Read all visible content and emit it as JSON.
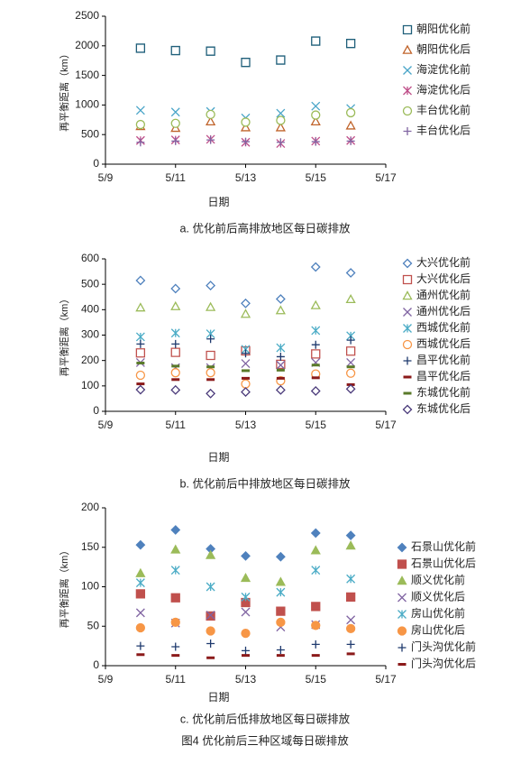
{
  "figure_caption": "图4 优化前后三种区域每日碳排放",
  "chart_data": [
    {
      "type": "scatter",
      "caption": "a.  优化前后高排放地区每日碳排放",
      "x_label": "日期",
      "y_label": "再平衡距离（km）",
      "x": [
        10,
        11,
        12,
        13,
        14,
        15,
        16
      ],
      "xlim": [
        9,
        17
      ],
      "xticks": [
        {
          "value": 9,
          "label": "5/9"
        },
        {
          "value": 11,
          "label": "5/11"
        },
        {
          "value": 13,
          "label": "5/13"
        },
        {
          "value": 15,
          "label": "5/15"
        },
        {
          "value": 17,
          "label": "5/17"
        }
      ],
      "ylim": [
        0,
        2500
      ],
      "yticks": [
        0,
        500,
        1000,
        1500,
        2000,
        2500
      ],
      "grid": false,
      "series": [
        {
          "name": "朝阳优化前",
          "color": "#1f5f7a",
          "marker": "square",
          "values": [
            1960,
            1920,
            1910,
            1720,
            1760,
            2080,
            2040
          ]
        },
        {
          "name": "朝阳优化后",
          "color": "#c0632a",
          "marker": "triangle",
          "values": [
            640,
            610,
            720,
            620,
            620,
            720,
            650
          ]
        },
        {
          "name": "海淀优化前",
          "color": "#4aa5c8",
          "marker": "x",
          "values": [
            910,
            880,
            890,
            780,
            860,
            980,
            940
          ]
        },
        {
          "name": "海淀优化后",
          "color": "#c0508a",
          "marker": "asterisk",
          "values": [
            400,
            410,
            420,
            370,
            350,
            390,
            400
          ]
        },
        {
          "name": "丰台优化前",
          "color": "#9bbb59",
          "marker": "circle",
          "values": [
            670,
            690,
            840,
            710,
            740,
            830,
            870
          ]
        },
        {
          "name": "丰台优化后",
          "color": "#8064a2",
          "marker": "plus",
          "values": [
            370,
            390,
            410,
            380,
            370,
            380,
            390
          ]
        }
      ]
    },
    {
      "type": "scatter",
      "caption": "b.  优化前后中排放地区每日碳排放",
      "x_label": "日期",
      "y_label": "再平衡距离（km）",
      "x": [
        10,
        11,
        12,
        13,
        14,
        15,
        16
      ],
      "xlim": [
        9,
        17
      ],
      "xticks": [
        {
          "value": 9,
          "label": "5/9"
        },
        {
          "value": 11,
          "label": "5/11"
        },
        {
          "value": 13,
          "label": "5/13"
        },
        {
          "value": 15,
          "label": "5/15"
        },
        {
          "value": 17,
          "label": "5/17"
        }
      ],
      "ylim": [
        0,
        600
      ],
      "yticks": [
        0,
        100,
        200,
        300,
        400,
        500,
        600
      ],
      "grid": false,
      "series": [
        {
          "name": "大兴优化前",
          "color": "#4f81bd",
          "marker": "diamond",
          "values": [
            515,
            483,
            495,
            425,
            442,
            568,
            545
          ]
        },
        {
          "name": "大兴优化后",
          "color": "#c0504d",
          "marker": "square",
          "values": [
            230,
            232,
            220,
            238,
            185,
            226,
            237
          ]
        },
        {
          "name": "通州优化前",
          "color": "#9bbb59",
          "marker": "triangle",
          "values": [
            408,
            413,
            410,
            383,
            397,
            417,
            441
          ]
        },
        {
          "name": "通州优化后",
          "color": "#8064a2",
          "marker": "x",
          "values": [
            192,
            172,
            172,
            188,
            182,
            192,
            192
          ]
        },
        {
          "name": "西城优化前",
          "color": "#4bacc6",
          "marker": "asterisk",
          "values": [
            293,
            308,
            305,
            244,
            250,
            318,
            297
          ]
        },
        {
          "name": "西城优化后",
          "color": "#f79646",
          "marker": "circle",
          "values": [
            142,
            152,
            152,
            108,
            120,
            147,
            150
          ]
        },
        {
          "name": "昌平优化前",
          "color": "#1f3a6e",
          "marker": "plus",
          "values": [
            265,
            265,
            285,
            228,
            215,
            262,
            280
          ]
        },
        {
          "name": "昌平优化后",
          "color": "#8b1a1a",
          "marker": "dash",
          "values": [
            108,
            125,
            125,
            130,
            130,
            132,
            105
          ]
        },
        {
          "name": "东城优化前",
          "color": "#5a7a2a",
          "marker": "dash",
          "values": [
            190,
            178,
            175,
            160,
            162,
            182,
            175
          ]
        },
        {
          "name": "东城优化后",
          "color": "#4a3a7a",
          "marker": "diamond",
          "values": [
            85,
            84,
            70,
            76,
            84,
            80,
            88
          ]
        }
      ]
    },
    {
      "type": "scatter",
      "caption": "c.  优化前后低排放地区每日碳排放",
      "x_label": "日期",
      "y_label": "再平衡距离（km）",
      "x": [
        10,
        11,
        12,
        13,
        14,
        15,
        16
      ],
      "xlim": [
        9,
        17
      ],
      "xticks": [
        {
          "value": 9,
          "label": "5/9"
        },
        {
          "value": 11,
          "label": "5/11"
        },
        {
          "value": 13,
          "label": "5/13"
        },
        {
          "value": 15,
          "label": "5/15"
        },
        {
          "value": 17,
          "label": "5/17"
        }
      ],
      "ylim": [
        0,
        200
      ],
      "yticks": [
        0,
        50,
        100,
        150,
        200
      ],
      "grid": false,
      "series": [
        {
          "name": "石景山优化前",
          "color": "#4f81bd",
          "marker": "diamond-filled",
          "values": [
            153,
            172,
            148,
            139,
            138,
            168,
            165
          ]
        },
        {
          "name": "石景山优化后",
          "color": "#c0504d",
          "marker": "square-filled",
          "values": [
            91,
            86,
            63,
            80,
            69,
            75,
            87
          ]
        },
        {
          "name": "顺义优化前",
          "color": "#9bbb59",
          "marker": "triangle-filled",
          "values": [
            117,
            147,
            140,
            111,
            106,
            146,
            152
          ]
        },
        {
          "name": "顺义优化后",
          "color": "#8064a2",
          "marker": "x",
          "values": [
            67,
            54,
            64,
            68,
            49,
            52,
            58
          ]
        },
        {
          "name": "房山优化前",
          "color": "#4bacc6",
          "marker": "asterisk",
          "values": [
            105,
            121,
            100,
            87,
            93,
            121,
            110
          ]
        },
        {
          "name": "房山优化后",
          "color": "#f79646",
          "marker": "circle-filled",
          "values": [
            48,
            55,
            44,
            41,
            55,
            51,
            47
          ]
        },
        {
          "name": "门头沟优化前",
          "color": "#1f3a6e",
          "marker": "plus",
          "values": [
            25,
            24,
            28,
            19,
            20,
            27,
            27
          ]
        },
        {
          "name": "门头沟优化后",
          "color": "#8b1a1a",
          "marker": "dash",
          "values": [
            14,
            13,
            10,
            13,
            13,
            13,
            15
          ]
        }
      ]
    }
  ]
}
